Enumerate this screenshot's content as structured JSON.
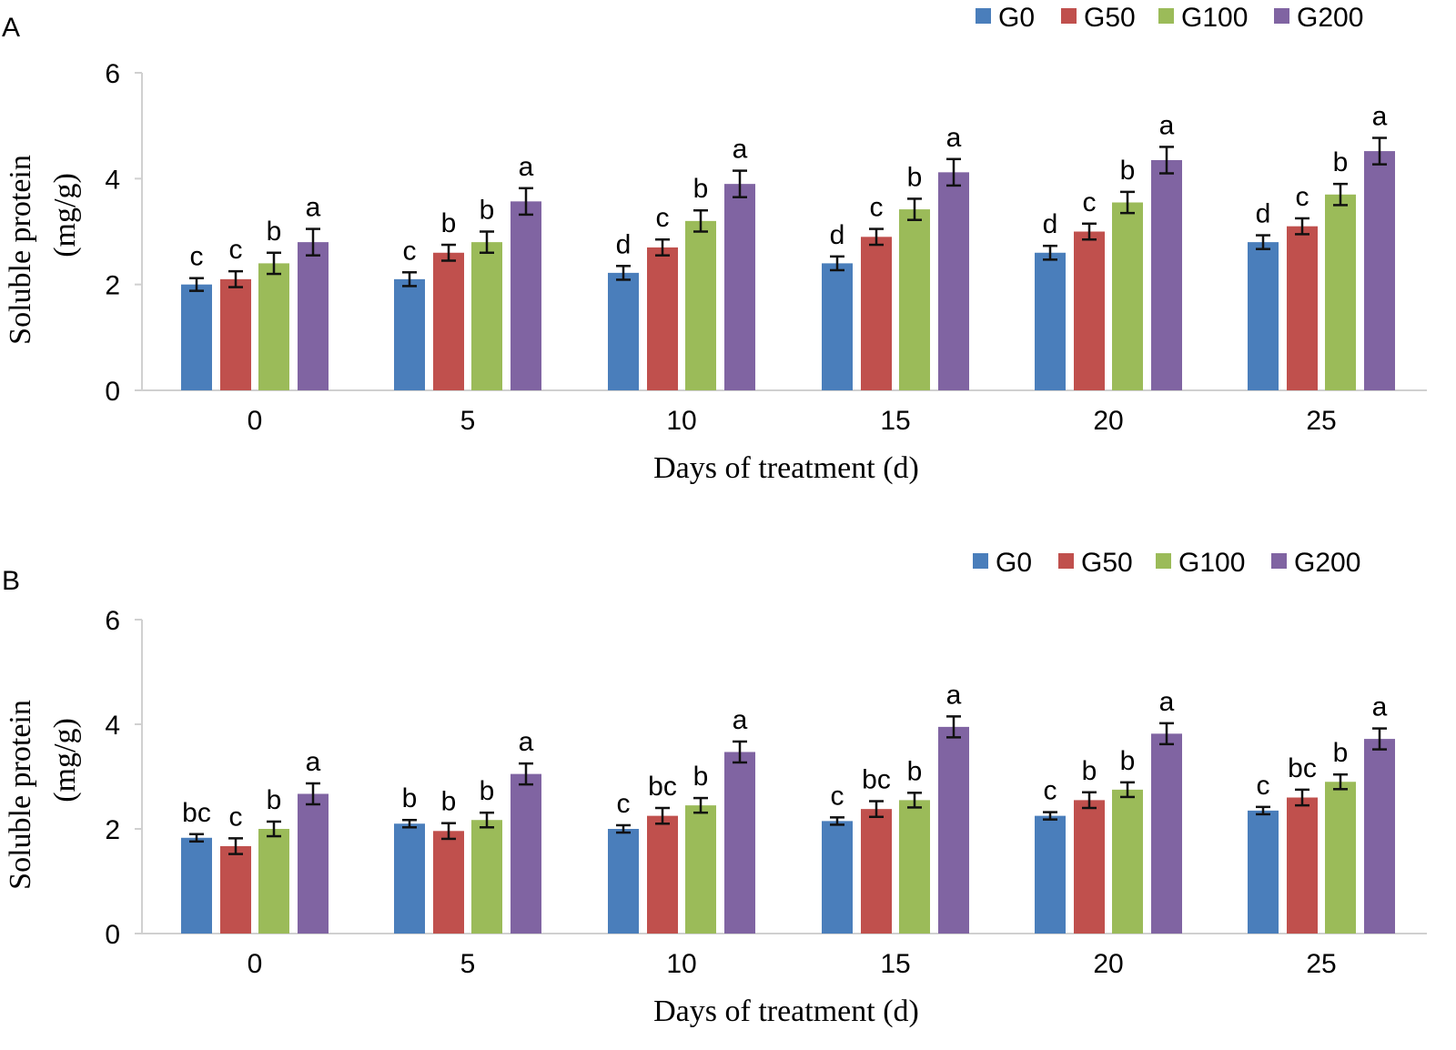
{
  "chart_data": [
    {
      "type": "bar",
      "panel": "A",
      "categories": [
        "0",
        "5",
        "10",
        "15",
        "20",
        "25"
      ],
      "series": [
        {
          "name": "G0",
          "color": "#4a7ebb",
          "values": [
            2.0,
            2.1,
            2.22,
            2.4,
            2.6,
            2.8
          ],
          "errors": [
            0.12,
            0.13,
            0.13,
            0.13,
            0.13,
            0.13
          ],
          "labels": [
            "c",
            "c",
            "d",
            "d",
            "d",
            "d"
          ]
        },
        {
          "name": "G50",
          "color": "#c0504d",
          "values": [
            2.1,
            2.6,
            2.7,
            2.9,
            3.0,
            3.1
          ],
          "errors": [
            0.15,
            0.15,
            0.15,
            0.15,
            0.15,
            0.15
          ],
          "labels": [
            "c",
            "b",
            "c",
            "c",
            "c",
            "c"
          ]
        },
        {
          "name": "G100",
          "color": "#9bbb59",
          "values": [
            2.4,
            2.8,
            3.2,
            3.42,
            3.55,
            3.7
          ],
          "errors": [
            0.2,
            0.2,
            0.2,
            0.2,
            0.2,
            0.2
          ],
          "labels": [
            "b",
            "b",
            "b",
            "b",
            "b",
            "b"
          ]
        },
        {
          "name": "G200",
          "color": "#8064a2",
          "values": [
            2.8,
            3.57,
            3.9,
            4.12,
            4.35,
            4.52
          ],
          "errors": [
            0.25,
            0.25,
            0.25,
            0.25,
            0.25,
            0.25
          ],
          "labels": [
            "a",
            "a",
            "a",
            "a",
            "a",
            "a"
          ]
        }
      ],
      "xlabel": "Days of treatment (d)",
      "ylabel_line1": "Soluble protein",
      "ylabel_line2": "(mg/g)",
      "ylim": [
        0,
        6
      ],
      "yticks": [
        "0",
        "2",
        "4",
        "6"
      ],
      "legend_position": "top-right"
    },
    {
      "type": "bar",
      "panel": "B",
      "categories": [
        "0",
        "5",
        "10",
        "15",
        "20",
        "25"
      ],
      "series": [
        {
          "name": "G0",
          "color": "#4a7ebb",
          "values": [
            1.83,
            2.1,
            2.0,
            2.15,
            2.25,
            2.35
          ],
          "errors": [
            0.07,
            0.07,
            0.07,
            0.07,
            0.07,
            0.07
          ],
          "labels": [
            "bc",
            "b",
            "c",
            "c",
            "c",
            "c"
          ]
        },
        {
          "name": "G50",
          "color": "#c0504d",
          "values": [
            1.67,
            1.96,
            2.25,
            2.38,
            2.55,
            2.6
          ],
          "errors": [
            0.15,
            0.15,
            0.15,
            0.15,
            0.15,
            0.15
          ],
          "labels": [
            "c",
            "b",
            "bc",
            "bc",
            "b",
            "bc"
          ]
        },
        {
          "name": "G100",
          "color": "#9bbb59",
          "values": [
            2.0,
            2.17,
            2.45,
            2.55,
            2.75,
            2.9
          ],
          "errors": [
            0.14,
            0.14,
            0.14,
            0.14,
            0.14,
            0.14
          ],
          "labels": [
            "b",
            "b",
            "b",
            "b",
            "b",
            "b"
          ]
        },
        {
          "name": "G200",
          "color": "#8064a2",
          "values": [
            2.67,
            3.05,
            3.47,
            3.95,
            3.82,
            3.72
          ],
          "errors": [
            0.2,
            0.2,
            0.2,
            0.2,
            0.2,
            0.2
          ],
          "labels": [
            "a",
            "a",
            "a",
            "a",
            "a",
            "a"
          ]
        }
      ],
      "xlabel": "Days of treatment (d)",
      "ylabel_line1": "Soluble protein",
      "ylabel_line2": "(mg/g)",
      "ylim": [
        0,
        6
      ],
      "yticks": [
        "0",
        "2",
        "4",
        "6"
      ],
      "legend_position": "top-right"
    }
  ]
}
